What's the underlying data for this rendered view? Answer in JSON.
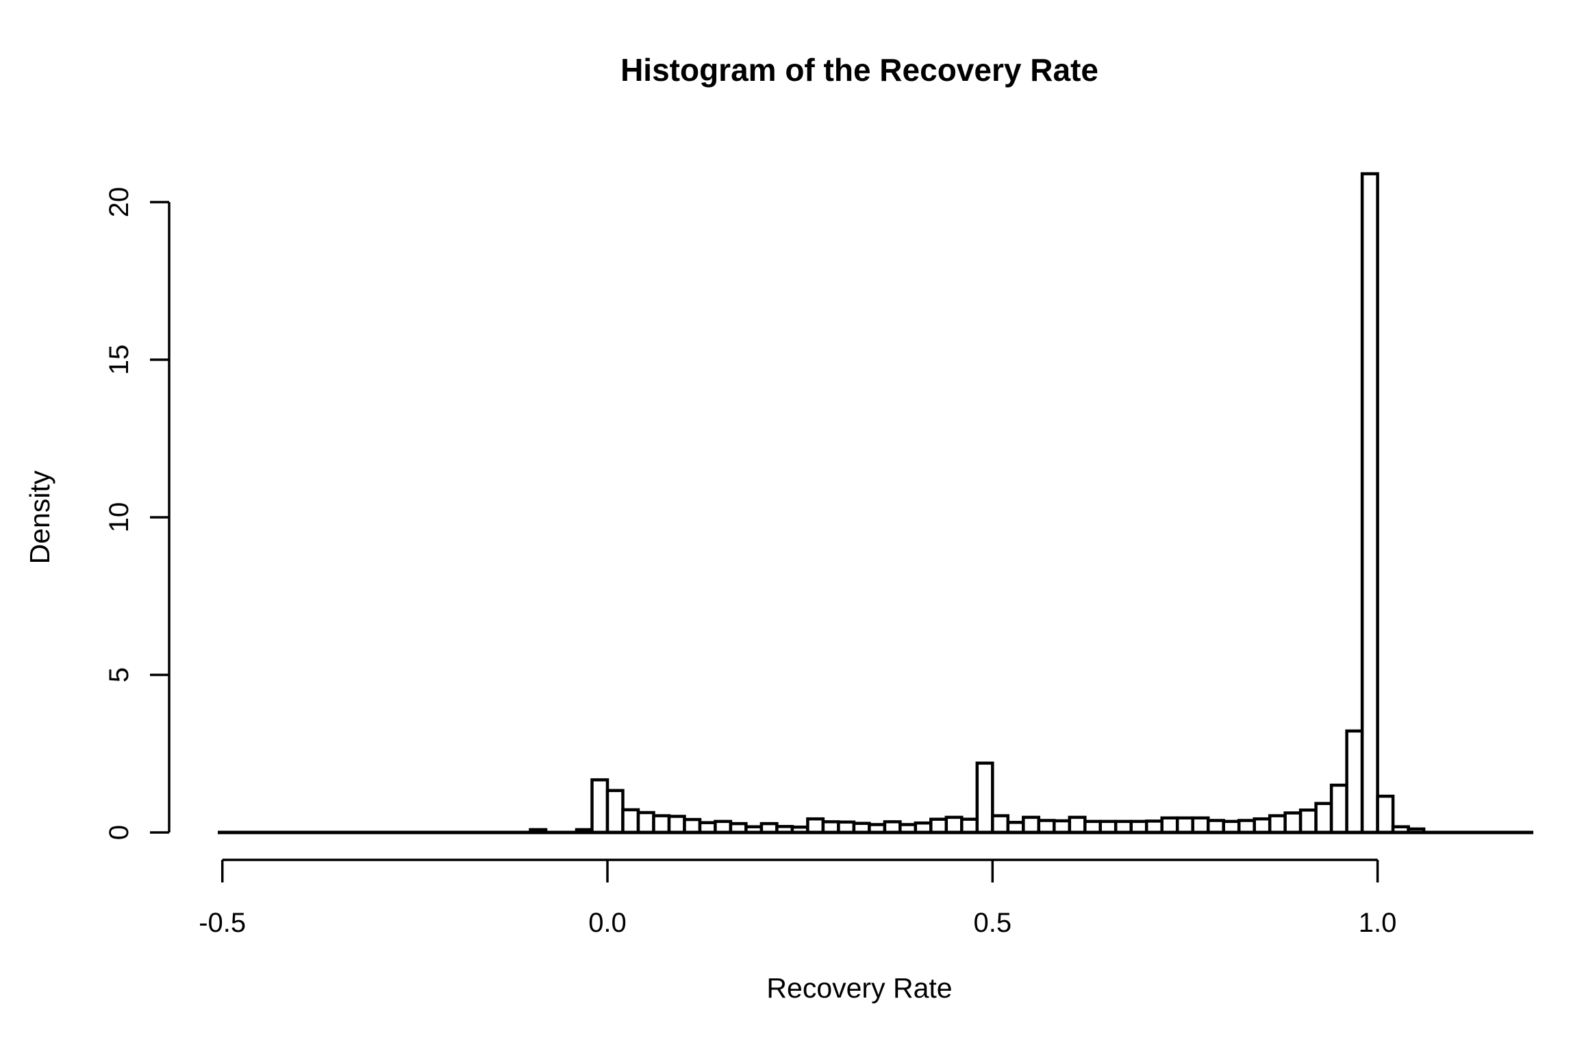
{
  "chart_data": {
    "type": "bar",
    "subtype": "histogram",
    "title": "Histogram of the Recovery Rate",
    "xlabel": "Recovery Rate",
    "ylabel": "Density",
    "bin_width": 0.02,
    "bins_start": -0.1,
    "densities": [
      0.09,
      0,
      0,
      0.09,
      1.67,
      1.33,
      0.72,
      0.63,
      0.53,
      0.51,
      0.41,
      0.31,
      0.35,
      0.28,
      0.18,
      0.28,
      0.19,
      0.17,
      0.43,
      0.34,
      0.33,
      0.29,
      0.25,
      0.34,
      0.25,
      0.3,
      0.42,
      0.48,
      0.42,
      2.2,
      0.53,
      0.32,
      0.48,
      0.38,
      0.37,
      0.48,
      0.35,
      0.35,
      0.35,
      0.35,
      0.36,
      0.46,
      0.46,
      0.46,
      0.38,
      0.35,
      0.38,
      0.43,
      0.53,
      0.62,
      0.71,
      0.92,
      1.5,
      3.22,
      20.9,
      1.15,
      0.18,
      0.11
    ],
    "x_ticks": [
      -0.5,
      0.0,
      0.5,
      1.0
    ],
    "x_tick_labels": [
      "-0.5",
      "0.0",
      "0.5",
      "1.0"
    ],
    "y_ticks": [
      0,
      5,
      10,
      15,
      20
    ],
    "y_tick_labels": [
      "0",
      "5",
      "10",
      "15",
      "20"
    ],
    "xlim": [
      -0.5,
      1.2
    ],
    "ylim": [
      0,
      20.9
    ],
    "grid": "off",
    "legend": "none",
    "bar_fill": "#ffffff",
    "bar_stroke": "#000000",
    "axis_color": "#000000",
    "background": "#ffffff"
  }
}
